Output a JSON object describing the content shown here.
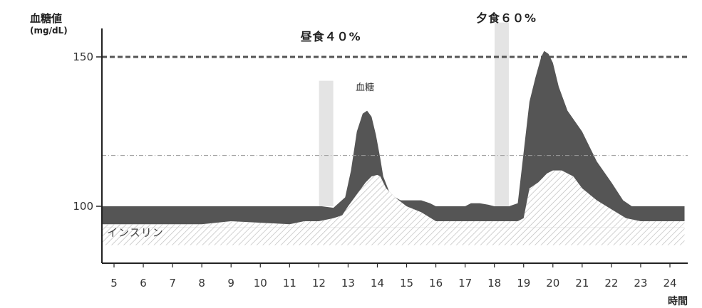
{
  "chart_data": {
    "type": "area",
    "ylabel": "血糖値",
    "yunit": "(mg/dL)",
    "xlabel": "時間",
    "xticks": [
      5,
      6,
      7,
      8,
      9,
      10,
      11,
      12,
      13,
      14,
      15,
      16,
      17,
      18,
      19,
      20,
      21,
      22,
      23,
      24
    ],
    "yticks": [
      100,
      150
    ],
    "xlim": [
      4.6,
      24.5
    ],
    "ylim": [
      85,
      160
    ],
    "reference_lines": [
      {
        "y": 150,
        "style": "dashed"
      },
      {
        "y": 117,
        "style": "dash-dot"
      }
    ],
    "meals": [
      {
        "label": "昼食４０%",
        "time": 12.25
      },
      {
        "label": "夕食６０%",
        "time": 18.25
      }
    ],
    "annotations": {
      "blood_sugar": "血糖",
      "insulin": "インスリン"
    },
    "series": [
      {
        "name": "血糖",
        "x": [
          4.6,
          12.1,
          12.5,
          12.9,
          13.1,
          13.3,
          13.5,
          13.65,
          13.8,
          13.95,
          14.1,
          14.2,
          14.4,
          14.6,
          14.8,
          15.0,
          15.5,
          15.8,
          16.0,
          17.0,
          17.2,
          17.5,
          17.8,
          18.0,
          18.5,
          18.8,
          19.0,
          19.2,
          19.4,
          19.6,
          19.7,
          19.85,
          20.0,
          20.2,
          20.5,
          21.0,
          21.5,
          22.0,
          22.4,
          22.7,
          23.0,
          24.5
        ],
        "values": [
          100,
          100,
          99.5,
          103,
          112,
          125,
          131,
          132,
          130,
          124,
          116,
          110,
          105,
          103,
          102,
          102,
          102,
          101,
          100,
          100,
          101,
          101,
          100.5,
          100,
          100,
          101,
          118,
          135,
          143,
          150,
          152,
          151,
          148,
          140,
          132,
          125,
          115,
          108,
          102,
          100,
          100,
          100
        ]
      },
      {
        "name": "インスリン",
        "x": [
          4.6,
          8.0,
          9.0,
          10.0,
          11.0,
          11.5,
          12.0,
          12.5,
          12.8,
          13.0,
          13.3,
          13.6,
          13.8,
          14.0,
          14.1,
          14.3,
          14.6,
          15.0,
          15.5,
          16.0,
          17.0,
          18.0,
          18.5,
          18.8,
          19.0,
          19.2,
          19.5,
          19.8,
          20.0,
          20.3,
          20.7,
          21.0,
          21.5,
          22.0,
          22.5,
          23.0,
          24.5
        ],
        "values": [
          94,
          94,
          95,
          94.5,
          94,
          95,
          95,
          96,
          97,
          100,
          104,
          108,
          110,
          110.5,
          110,
          106,
          103,
          100,
          98,
          95,
          95,
          95,
          95,
          95,
          96,
          106,
          108,
          111,
          112,
          112,
          110,
          106,
          102,
          99,
          96,
          95,
          95
        ]
      }
    ]
  },
  "colors": {
    "blood_sugar_fill": "#555555",
    "insulin_hatch": "#bdbdbd",
    "meal_marker": "#e4e4e4",
    "axis": "#222222"
  }
}
